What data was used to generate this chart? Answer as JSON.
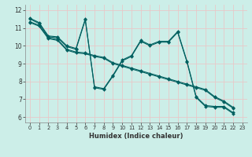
{
  "xlabel": "Humidex (Indice chaleur)",
  "bg_color": "#cceee8",
  "grid_color": "#e8c8c8",
  "line_color": "#006060",
  "xlim": [
    -0.5,
    23.5
  ],
  "ylim": [
    5.7,
    12.3
  ],
  "yticks": [
    6,
    7,
    8,
    9,
    10,
    11,
    12
  ],
  "xticks": [
    0,
    1,
    2,
    3,
    4,
    5,
    6,
    7,
    8,
    9,
    10,
    11,
    12,
    13,
    14,
    15,
    16,
    17,
    18,
    19,
    20,
    21,
    22,
    23
  ],
  "series1_x": [
    0,
    1,
    2,
    3,
    4,
    5,
    6,
    7,
    8,
    9,
    10,
    11,
    12,
    13,
    14,
    15,
    16,
    17,
    18,
    19,
    20,
    21,
    22
  ],
  "series1_y": [
    11.55,
    11.3,
    10.55,
    10.5,
    10.0,
    9.85,
    11.5,
    7.65,
    7.55,
    8.3,
    9.15,
    9.4,
    10.25,
    10.0,
    10.2,
    10.2,
    10.75,
    9.1,
    7.1,
    6.6,
    6.55,
    6.55,
    6.2
  ],
  "series2_x": [
    0,
    1,
    2,
    3,
    4,
    5,
    6,
    7,
    8,
    9,
    10,
    11,
    12,
    13,
    14,
    15,
    16,
    17,
    18,
    19,
    20,
    21,
    22
  ],
  "series2_y": [
    11.5,
    11.25,
    10.5,
    10.45,
    9.95,
    9.8,
    11.45,
    7.7,
    7.6,
    8.35,
    9.2,
    9.45,
    10.3,
    10.05,
    10.25,
    10.25,
    10.8,
    9.15,
    7.15,
    6.65,
    6.6,
    6.6,
    6.25
  ],
  "series3_x": [
    0,
    1,
    2,
    3,
    4,
    5,
    6,
    7,
    8,
    9,
    10,
    11,
    12,
    13,
    14,
    15,
    16,
    17,
    18,
    19,
    20,
    21,
    22
  ],
  "series3_y": [
    11.3,
    11.1,
    10.4,
    10.3,
    9.75,
    9.6,
    9.55,
    9.4,
    9.3,
    9.0,
    8.85,
    8.7,
    8.55,
    8.4,
    8.25,
    8.1,
    7.95,
    7.8,
    7.65,
    7.5,
    7.1,
    6.85,
    6.5
  ],
  "series4_x": [
    0,
    1,
    2,
    3,
    4,
    5,
    6,
    7,
    8,
    9,
    10,
    11,
    12,
    13,
    14,
    15,
    16,
    17,
    18,
    19,
    20,
    21,
    22
  ],
  "series4_y": [
    11.35,
    11.15,
    10.45,
    10.35,
    9.8,
    9.65,
    9.6,
    9.45,
    9.35,
    9.05,
    8.9,
    8.75,
    8.6,
    8.45,
    8.3,
    8.15,
    8.0,
    7.85,
    7.7,
    7.55,
    7.15,
    6.9,
    6.55
  ]
}
